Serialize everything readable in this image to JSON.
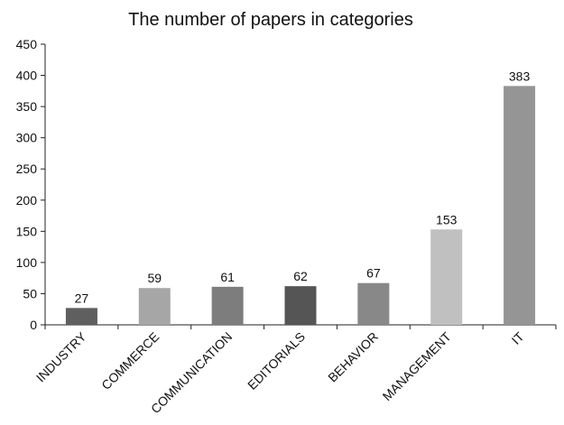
{
  "chart_data": {
    "type": "bar",
    "title": "The number of papers in categories",
    "xlabel": "",
    "ylabel": "",
    "categories": [
      "INDUSTRY",
      "COMMERCE",
      "COMMUNICATION",
      "EDITORIALS",
      "BEHAVIOR",
      "MANAGEMENT",
      "IT"
    ],
    "values": [
      27,
      59,
      61,
      62,
      67,
      153,
      383
    ],
    "data_labels": [
      "27",
      "59",
      "61",
      "62",
      "67",
      "153",
      "383"
    ],
    "bar_colors": [
      "#5f5f5f",
      "#a6a6a6",
      "#7d7d7d",
      "#555555",
      "#888888",
      "#c0c0c0",
      "#959595"
    ],
    "ylim": [
      0,
      450
    ],
    "yticks": [
      0,
      50,
      100,
      150,
      200,
      250,
      300,
      350,
      400,
      450
    ],
    "ytick_labels": [
      "0",
      "50",
      "100",
      "150",
      "200",
      "250",
      "300",
      "350",
      "400",
      "450"
    ],
    "grid": false,
    "legend": "none"
  }
}
